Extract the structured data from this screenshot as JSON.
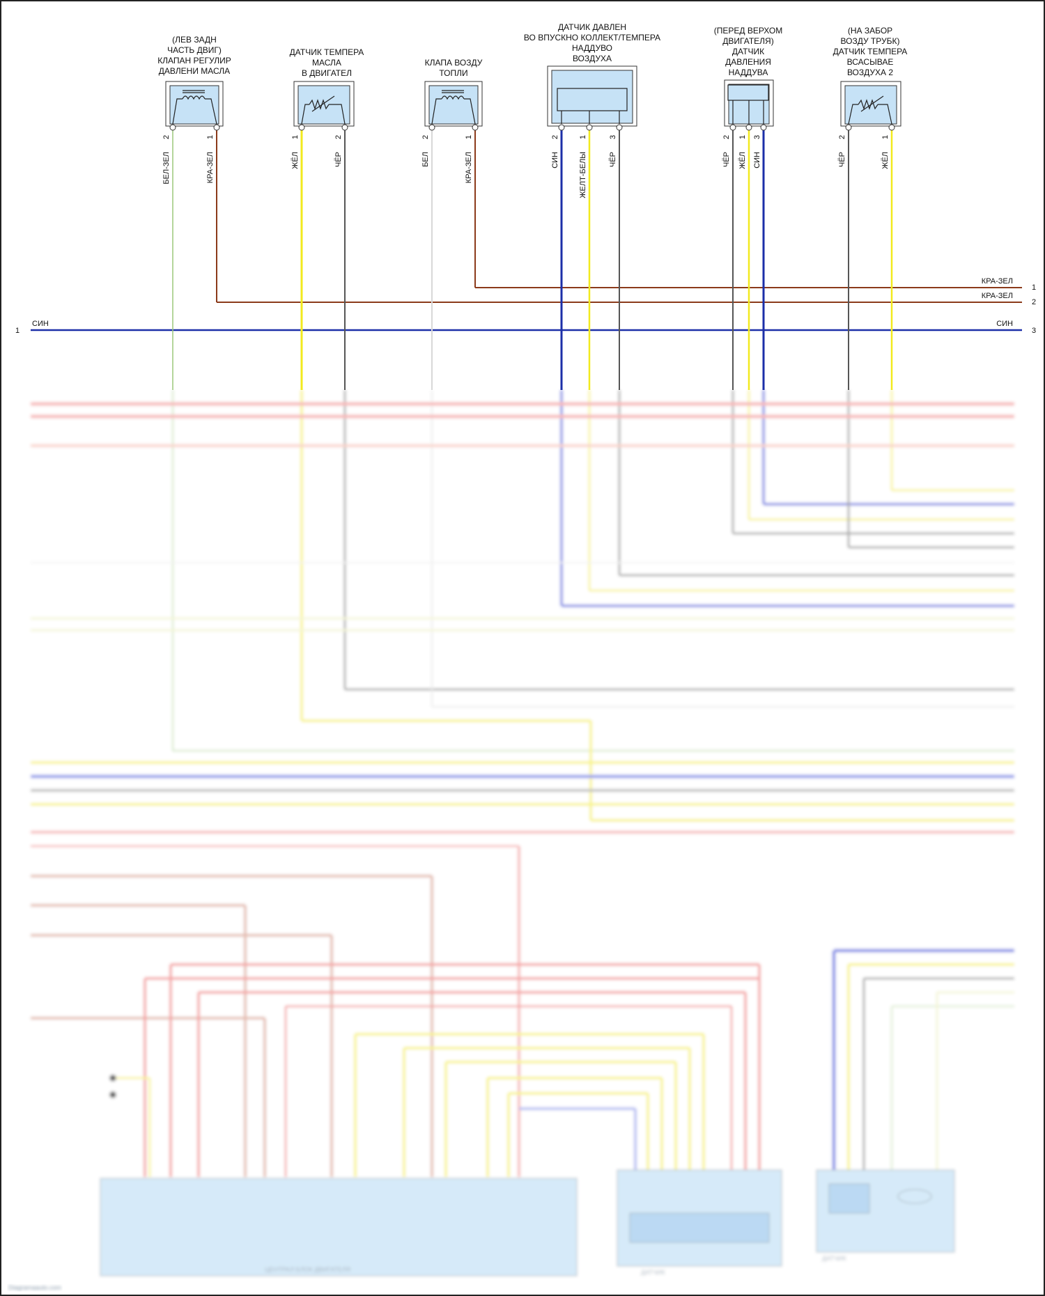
{
  "components": [
    {
      "id": "oil-pressure-valve",
      "title_lines": [
        "(ЛЕВ ЗАДН",
        "ЧАСТЬ ДВИГ)",
        "КЛАПАН РЕГУЛИР",
        "ДАВЛЕНИ МАСЛА"
      ],
      "pins": [
        "2",
        "1"
      ],
      "wires": [
        "БЕЛ-ЗЕЛ",
        "КРА-ЗЕЛ"
      ]
    },
    {
      "id": "oil-temp-sensor",
      "title_lines": [
        "ДАТЧИК ТЕМПЕРА",
        "МАСЛА",
        "В ДВИГАТЕЛ"
      ],
      "pins": [
        "1",
        "2"
      ],
      "wires": [
        "ЖЁЛ",
        "ЧЁР"
      ]
    },
    {
      "id": "fuel-air-valve",
      "title_lines": [
        "КЛАПА ВОЗДУ",
        "ТОПЛИ"
      ],
      "pins": [
        "2",
        "1"
      ],
      "wires": [
        "БЕЛ",
        "КРА-ЗЕЛ"
      ]
    },
    {
      "id": "manifold-pressure-sensor",
      "title_lines": [
        "ДАТЧИК ДАВЛЕН",
        "ВО ВПУСКНО КОЛЛЕКТ/ТЕМПЕРА",
        "НАДДУВО",
        "ВОЗДУХА"
      ],
      "pins": [
        "2",
        "1",
        "3"
      ],
      "wires": [
        "СИН",
        "ЖЕЛТ-БЕЛЫ",
        "ЧЁР"
      ]
    },
    {
      "id": "boost-pressure-sensor",
      "title_lines": [
        "(ПЕРЕД ВЕРХОМ",
        "ДВИГАТЕЛЯ)",
        "ДАТЧИК",
        "ДАВЛЕНИЯ",
        "НАДДУВА"
      ],
      "pins": [
        "2",
        "1",
        "3"
      ],
      "wires": [
        "ЧЁР",
        "ЖЁЛ",
        "СИН"
      ]
    },
    {
      "id": "intake-air-temp-sensor-2",
      "title_lines": [
        "(НА ЗАБОР",
        "ВОЗДУ ТРУБК)",
        "ДАТЧИК ТЕМПЕРА",
        "ВСАСЫВАЕ",
        "ВОЗДУХА 2"
      ],
      "pins": [
        "2",
        "1"
      ],
      "wires": [
        "ЧЁР",
        "ЖЁЛ"
      ]
    }
  ],
  "bus": {
    "right_labels": [
      "КРА-ЗЕЛ",
      "КРА-ЗЕЛ",
      "СИН"
    ],
    "right_numbers": [
      "1",
      "2",
      "3"
    ],
    "left_label": "СИН",
    "left_number": "1"
  },
  "colors": {
    "red_green": "#8b3a1a",
    "blue": "#1c2fa8",
    "yellow": "#f2ea1e",
    "black": "#555555",
    "white_green": "#9bc77a",
    "white": "#d8d8d8",
    "pink": "#f29a9a",
    "light_blue_box": "#c6e2f6"
  },
  "footer_mark": "Diagramaauto.com"
}
